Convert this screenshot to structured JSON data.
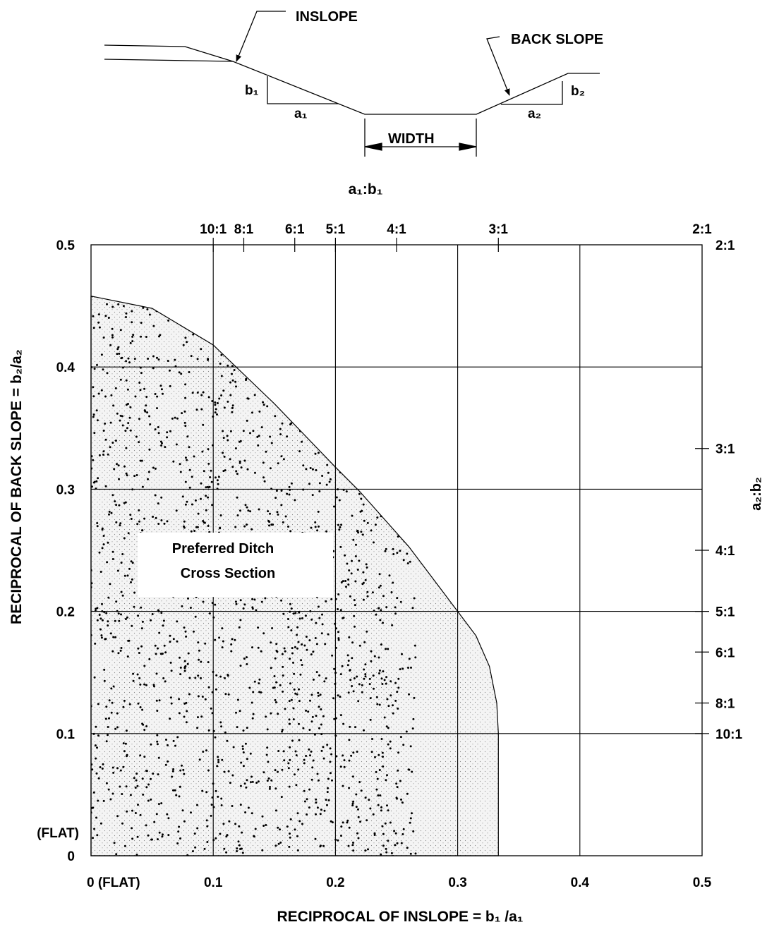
{
  "diagram": {
    "inslope_label": "INSLOPE",
    "backslope_label": "BACK SLOPE",
    "width_label": "WIDTH",
    "b1_label": "b₁",
    "a1_label": "a₁",
    "a2_label": "a₂",
    "b2_label": "b₂"
  },
  "chart_data": {
    "type": "area",
    "xlabel": "RECIPROCAL OF INSLOPE =  b₁ /a₁",
    "ylabel": "RECIPROCAL OF BACK SLOPE = b₂/a₂",
    "top_axis_title": "a₁:b₁",
    "right_axis_title": "a₂:b₂",
    "xlim": [
      0,
      0.5
    ],
    "ylim": [
      0,
      0.5
    ],
    "grid": true,
    "x_ticks": [
      {
        "value": 0,
        "label": "0  (FLAT)"
      },
      {
        "value": 0.1,
        "label": "0.1"
      },
      {
        "value": 0.2,
        "label": "0.2"
      },
      {
        "value": 0.3,
        "label": "0.3"
      },
      {
        "value": 0.4,
        "label": "0.4"
      },
      {
        "value": 0.5,
        "label": "0.5"
      }
    ],
    "y_ticks": [
      {
        "value": 0,
        "label": "0"
      },
      {
        "value": 0.1,
        "label": "0.1"
      },
      {
        "value": 0.2,
        "label": "0.2"
      },
      {
        "value": 0.3,
        "label": "0.3"
      },
      {
        "value": 0.4,
        "label": "0.4"
      },
      {
        "value": 0.5,
        "label": "0.5"
      }
    ],
    "y_flat_label": "(FLAT)",
    "top_ticks": [
      {
        "value": 0.1,
        "label": "10:1"
      },
      {
        "value": 0.125,
        "label": "8:1"
      },
      {
        "value": 0.1667,
        "label": "6:1"
      },
      {
        "value": 0.2,
        "label": "5:1"
      },
      {
        "value": 0.25,
        "label": "4:1"
      },
      {
        "value": 0.3333,
        "label": "3:1"
      },
      {
        "value": 0.5,
        "label": "2:1"
      }
    ],
    "right_ticks": [
      {
        "value": 0.5,
        "label": "2:1"
      },
      {
        "value": 0.3333,
        "label": "3:1"
      },
      {
        "value": 0.25,
        "label": "4:1"
      },
      {
        "value": 0.2,
        "label": "5:1"
      },
      {
        "value": 0.1667,
        "label": "6:1"
      },
      {
        "value": 0.125,
        "label": "8:1"
      },
      {
        "value": 0.1,
        "label": "10:1"
      }
    ],
    "region": {
      "name_line1": "Preferred Ditch",
      "name_line2": "Cross Section",
      "boundary": [
        {
          "x": 0,
          "y": 0
        },
        {
          "x": 0,
          "y": 0.458
        },
        {
          "x": 0.05,
          "y": 0.448
        },
        {
          "x": 0.1,
          "y": 0.418
        },
        {
          "x": 0.15,
          "y": 0.37
        },
        {
          "x": 0.2,
          "y": 0.318
        },
        {
          "x": 0.22,
          "y": 0.298
        },
        {
          "x": 0.26,
          "y": 0.253
        },
        {
          "x": 0.3,
          "y": 0.2
        },
        {
          "x": 0.315,
          "y": 0.18
        },
        {
          "x": 0.326,
          "y": 0.155
        },
        {
          "x": 0.332,
          "y": 0.125
        },
        {
          "x": 0.3333,
          "y": 0.1
        },
        {
          "x": 0.3333,
          "y": 0
        }
      ]
    }
  }
}
